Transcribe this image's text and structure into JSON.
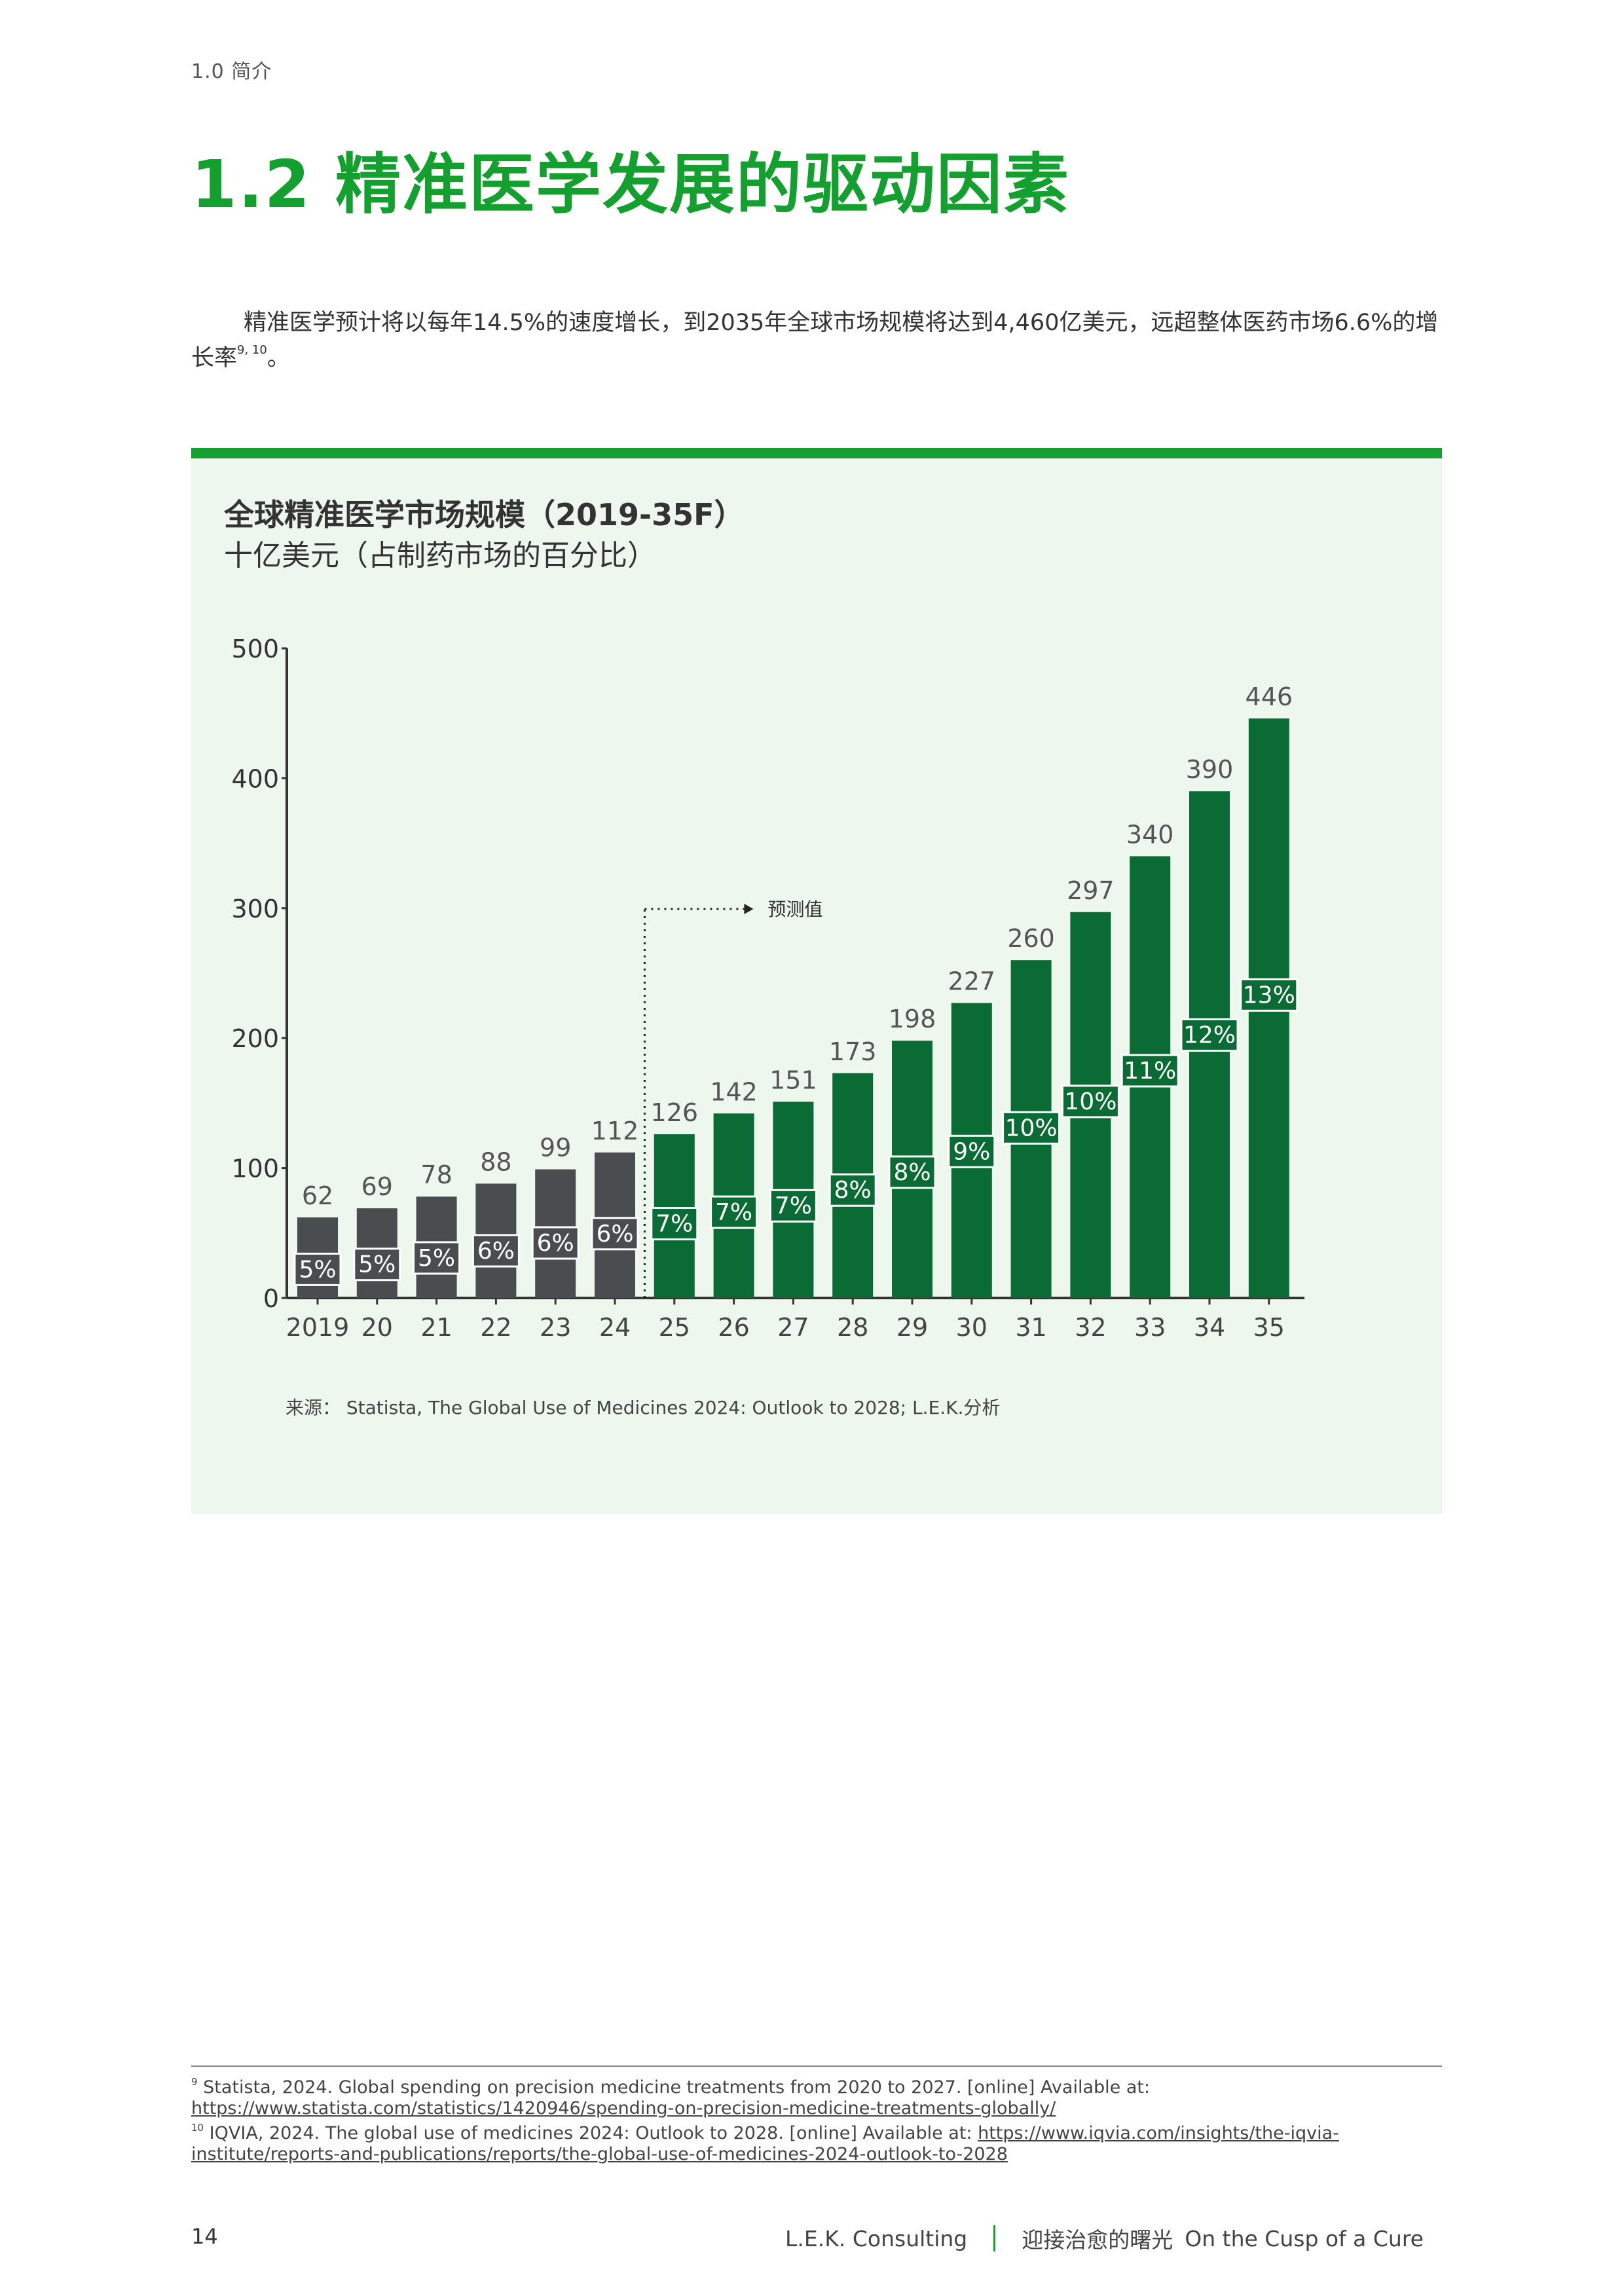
{
  "breadcrumb": "1.0  简介",
  "title": "1.2  精准医学发展的驱动因素",
  "intro": {
    "text": "精准医学预计将以每年14.5%的速度增长，到2035年全球市场规模将达到4,460亿美元，远超整体医药市场6.6%的增长率",
    "refs": "9, 10",
    "end": "。"
  },
  "chart": {
    "title": "全球精准医学市场规模（2019-35F）",
    "subtitle": "十亿美元（占制药市场的百分比）",
    "forecast_label": "预测值",
    "source": "来源：  Statista, The Global Use of Medicines 2024: Outlook to 2028; L.E.K.分析",
    "colors": {
      "actual": "#4a4d4f",
      "forecast": "#0b6b34",
      "accent": "#13a02e",
      "background": "#eef7ee"
    }
  },
  "chart_data": {
    "type": "bar",
    "categories": [
      "2019",
      "20",
      "21",
      "22",
      "23",
      "24",
      "25",
      "26",
      "27",
      "28",
      "29",
      "30",
      "31",
      "32",
      "33",
      "34",
      "35"
    ],
    "values": [
      62,
      69,
      78,
      88,
      99,
      112,
      126,
      142,
      151,
      173,
      198,
      227,
      260,
      297,
      340,
      390,
      446
    ],
    "shares": [
      "5%",
      "5%",
      "5%",
      "6%",
      "6%",
      "6%",
      "7%",
      "7%",
      "7%",
      "8%",
      "8%",
      "9%",
      "10%",
      "10%",
      "11%",
      "12%",
      "13%"
    ],
    "forecast_start_index": 6,
    "title": "全球精准医学市场规模（2019-35F）",
    "ylabel": "十亿美元（占制药市场的百分比）",
    "ylim": [
      0,
      500
    ],
    "yticks": [
      0,
      100,
      200,
      300,
      400,
      500
    ],
    "grid": false,
    "legend": "none"
  },
  "footnotes": [
    {
      "num": "9",
      "text": " Statista, 2024. Global spending on precision medicine treatments from 2020 to 2027. [online] Available at: ",
      "link": "https://www.statista.com/statistics/1420946/spending-on-precision-medicine-treatments-globally/"
    },
    {
      "num": "10",
      "text": " IQVIA, 2024. The global use of medicines 2024: Outlook to 2028. [online] Available at: ",
      "link": "https://www.iqvia.com/insights/the-iqvia-institute/reports-and-publications/reports/the-global-use-of-medicines-2024-outlook-to-2028"
    }
  ],
  "footer": {
    "page_number": "14",
    "company": "L.E.K. Consulting",
    "report_cn": "迎接治愈的曙光",
    "report_en": "On the Cusp of a Cure"
  }
}
